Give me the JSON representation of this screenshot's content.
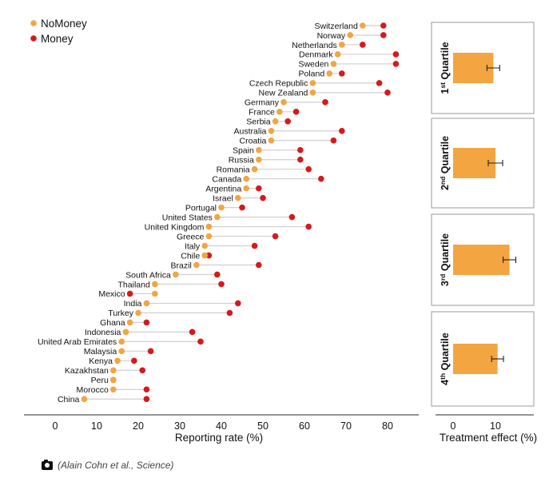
{
  "chart_data": [
    {
      "type": "scatter",
      "title": "",
      "xlabel": "Reporting rate (%)",
      "ylabel": "",
      "xlim": [
        -7,
        85
      ],
      "xticks": [
        0,
        10,
        20,
        30,
        40,
        50,
        60,
        70,
        80
      ],
      "legend_position": "top-left",
      "series_names": [
        "NoMoney",
        "Money"
      ],
      "colors": {
        "NoMoney": "#f2a541",
        "Money": "#d7191c",
        "connector": "#cfcfcf"
      },
      "countries": [
        {
          "name": "Switzerland",
          "nomoney": 74,
          "money": 79
        },
        {
          "name": "Norway",
          "nomoney": 71,
          "money": 79
        },
        {
          "name": "Netherlands",
          "nomoney": 69,
          "money": 74
        },
        {
          "name": "Denmark",
          "nomoney": 68,
          "money": 82
        },
        {
          "name": "Sweden",
          "nomoney": 67,
          "money": 82
        },
        {
          "name": "Poland",
          "nomoney": 66,
          "money": 69
        },
        {
          "name": "Czech Republic",
          "nomoney": 62,
          "money": 78
        },
        {
          "name": "New Zealand",
          "nomoney": 62,
          "money": 80
        },
        {
          "name": "Germany",
          "nomoney": 55,
          "money": 65
        },
        {
          "name": "France",
          "nomoney": 54,
          "money": 58
        },
        {
          "name": "Serbia",
          "nomoney": 53,
          "money": 56
        },
        {
          "name": "Australia",
          "nomoney": 52,
          "money": 69
        },
        {
          "name": "Croatia",
          "nomoney": 52,
          "money": 67
        },
        {
          "name": "Spain",
          "nomoney": 49,
          "money": 59
        },
        {
          "name": "Russia",
          "nomoney": 49,
          "money": 59
        },
        {
          "name": "Romania",
          "nomoney": 48,
          "money": 61
        },
        {
          "name": "Canada",
          "nomoney": 46,
          "money": 64
        },
        {
          "name": "Argentina",
          "nomoney": 46,
          "money": 49
        },
        {
          "name": "Israel",
          "nomoney": 44,
          "money": 50
        },
        {
          "name": "Portugal",
          "nomoney": 40,
          "money": 45
        },
        {
          "name": "United States",
          "nomoney": 39,
          "money": 57
        },
        {
          "name": "United Kingdom",
          "nomoney": 37,
          "money": 61
        },
        {
          "name": "Greece",
          "nomoney": 37,
          "money": 53
        },
        {
          "name": "Italy",
          "nomoney": 36,
          "money": 48
        },
        {
          "name": "Chile",
          "nomoney": 36,
          "money": 37
        },
        {
          "name": "Brazil",
          "nomoney": 34,
          "money": 49
        },
        {
          "name": "South Africa",
          "nomoney": 29,
          "money": 39
        },
        {
          "name": "Thailand",
          "nomoney": 24,
          "money": 40
        },
        {
          "name": "Mexico",
          "nomoney": 24,
          "money": 18
        },
        {
          "name": "India",
          "nomoney": 22,
          "money": 44
        },
        {
          "name": "Turkey",
          "nomoney": 20,
          "money": 42
        },
        {
          "name": "Ghana",
          "nomoney": 18,
          "money": 22
        },
        {
          "name": "Indonesia",
          "nomoney": 17,
          "money": 33
        },
        {
          "name": "United Arab Emirates",
          "nomoney": 16,
          "money": 35
        },
        {
          "name": "Malaysia",
          "nomoney": 16,
          "money": 23
        },
        {
          "name": "Kenya",
          "nomoney": 15,
          "money": 19
        },
        {
          "name": "Kazakhstan",
          "nomoney": 14,
          "money": 21
        },
        {
          "name": "Peru",
          "nomoney": 14,
          "money": 14
        },
        {
          "name": "Morocco",
          "nomoney": 14,
          "money": 22
        },
        {
          "name": "China",
          "nomoney": 7,
          "money": 22
        }
      ]
    },
    {
      "type": "bar",
      "xlabel": "Treatment effect (%)",
      "xlim": [
        -2.5,
        19
      ],
      "xticks": [
        0,
        10
      ],
      "color": "#f2a541",
      "categories": [
        "1st Quartile",
        "2nd Quartile",
        "3rd Quartile",
        "4th Quartile"
      ],
      "quartiles": [
        {
          "base": "1",
          "sup": "st",
          "word": "Quartile",
          "value": 9.5,
          "err": 1.5
        },
        {
          "base": "2",
          "sup": "nd",
          "word": "Quartile",
          "value": 10.0,
          "err": 1.7
        },
        {
          "base": "3",
          "sup": "rd",
          "word": "Quartile",
          "value": 13.3,
          "err": 1.5
        },
        {
          "base": "4",
          "sup": "th",
          "word": "Quartile",
          "value": 10.5,
          "err": 1.4
        }
      ]
    }
  ],
  "caption": "(Alain Cohn et al., Science)"
}
